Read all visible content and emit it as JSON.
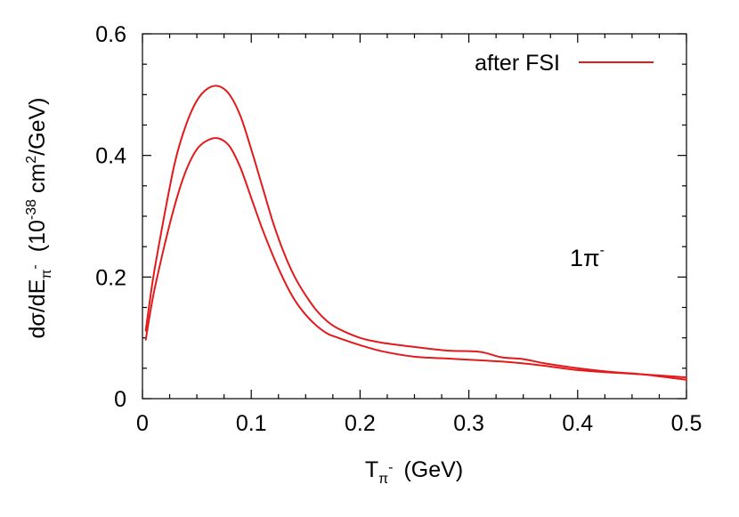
{
  "chart_data": {
    "type": "line",
    "title": "",
    "xlabel": {
      "main": "T",
      "sub": "π",
      "sup": "-",
      "units": "(GeV)"
    },
    "ylabel": {
      "main": "dσ/dE",
      "sub": "π",
      "sup": "-",
      "units_pre": "(10",
      "units_exp": "-38",
      "units_mid": " cm",
      "units_exp2": "2",
      "units_post": "/GeV)"
    },
    "xlim": [
      0,
      0.5
    ],
    "ylim": [
      0,
      0.6
    ],
    "xticks": [
      "0",
      "0.1",
      "0.2",
      "0.3",
      "0.4",
      "0.5"
    ],
    "xtick_values": [
      0,
      0.1,
      0.2,
      0.3,
      0.4,
      0.5
    ],
    "yticks": [
      "0",
      "0.2",
      "0.4",
      "0.6"
    ],
    "ytick_values": [
      0,
      0.2,
      0.4,
      0.6
    ],
    "grid": false,
    "legend_position": "top-right",
    "annotation": {
      "main": "1π",
      "sup": "-"
    },
    "series": [
      {
        "name": "after FSI",
        "color": "#e31a1c",
        "x": [
          0.003,
          0.01,
          0.02,
          0.03,
          0.04,
          0.05,
          0.06,
          0.07,
          0.08,
          0.09,
          0.1,
          0.11,
          0.12,
          0.13,
          0.14,
          0.15,
          0.16,
          0.17,
          0.18,
          0.2,
          0.22,
          0.25,
          0.28,
          0.31,
          0.33,
          0.35,
          0.37,
          0.4,
          0.43,
          0.46,
          0.5
        ],
        "values": [
          0.112,
          0.2,
          0.3,
          0.39,
          0.45,
          0.49,
          0.51,
          0.514,
          0.5,
          0.465,
          0.41,
          0.35,
          0.29,
          0.24,
          0.2,
          0.17,
          0.145,
          0.127,
          0.115,
          0.1,
          0.092,
          0.085,
          0.079,
          0.077,
          0.068,
          0.065,
          0.058,
          0.05,
          0.044,
          0.04,
          0.031
        ]
      },
      {
        "name": "",
        "color": "#e31a1c",
        "x": [
          0.003,
          0.01,
          0.02,
          0.03,
          0.04,
          0.05,
          0.06,
          0.07,
          0.08,
          0.09,
          0.1,
          0.11,
          0.12,
          0.13,
          0.14,
          0.15,
          0.16,
          0.17,
          0.18,
          0.2,
          0.22,
          0.25,
          0.28,
          0.31,
          0.33,
          0.35,
          0.37,
          0.4,
          0.43,
          0.46,
          0.5
        ],
        "values": [
          0.097,
          0.17,
          0.25,
          0.32,
          0.375,
          0.41,
          0.425,
          0.428,
          0.415,
          0.38,
          0.33,
          0.28,
          0.235,
          0.195,
          0.162,
          0.138,
          0.12,
          0.107,
          0.1,
          0.088,
          0.078,
          0.069,
          0.066,
          0.063,
          0.061,
          0.058,
          0.054,
          0.047,
          0.043,
          0.04,
          0.035
        ]
      }
    ]
  }
}
